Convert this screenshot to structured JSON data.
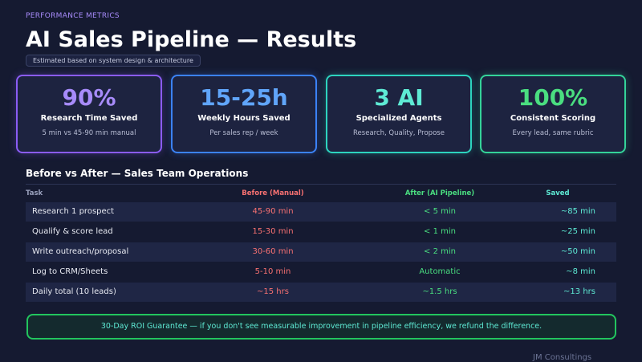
{
  "header": {
    "eyebrow": "PERFORMANCE METRICS",
    "title": "AI Sales Pipeline — Results",
    "badge": "Estimated based on system design & architecture"
  },
  "cards": [
    {
      "value": "90%",
      "label": "Research Time Saved",
      "sub": "5 min vs 45-90 min manual"
    },
    {
      "value": "15-25h",
      "label": "Weekly Hours Saved",
      "sub": "Per sales rep / week"
    },
    {
      "value": "3 AI",
      "label": "Specialized Agents",
      "sub": "Research, Quality, Propose"
    },
    {
      "value": "100%",
      "label": "Consistent Scoring",
      "sub": "Every lead, same rubric"
    }
  ],
  "table": {
    "title": "Before vs After — Sales Team Operations",
    "headers": [
      "Task",
      "Before (Manual)",
      "After (AI Pipeline)",
      "Saved"
    ],
    "rows": [
      [
        "Research 1 prospect",
        "45-90 min",
        "< 5 min",
        "~85 min"
      ],
      [
        "Qualify & score lead",
        "15-30 min",
        "< 1 min",
        "~25 min"
      ],
      [
        "Write outreach/proposal",
        "30-60 min",
        "< 2 min",
        "~50 min"
      ],
      [
        "Log to CRM/Sheets",
        "5-10 min",
        "Automatic",
        "~8 min"
      ],
      [
        "Daily total (10 leads)",
        "~15 hrs",
        "~1.5 hrs",
        "~13 hrs"
      ]
    ]
  },
  "footer": {
    "note": "30-Day ROI Guarantee — if you don't see measurable improvement in pipeline efficiency, we refund the difference.",
    "brand": "JM Consultings"
  }
}
